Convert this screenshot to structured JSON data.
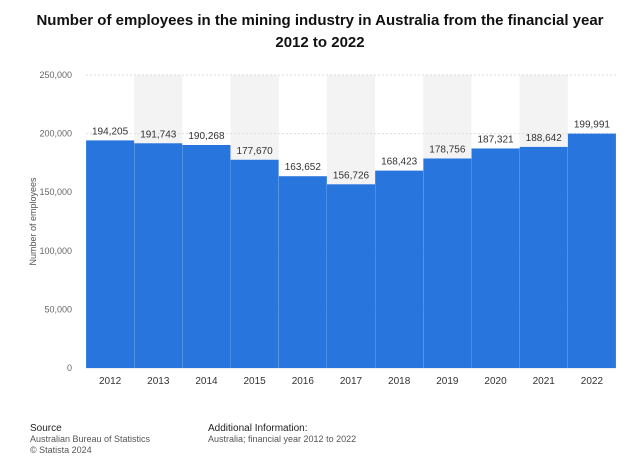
{
  "chart_data": {
    "type": "bar",
    "title": "Number of employees in the mining industry in Australia from the financial year 2012 to 2022",
    "ylabel": "Number of employees",
    "xlabel": "",
    "categories": [
      "2012",
      "2013",
      "2014",
      "2015",
      "2016",
      "2017",
      "2018",
      "2019",
      "2020",
      "2021",
      "2022"
    ],
    "values": [
      194205,
      191743,
      190268,
      177670,
      163652,
      156726,
      168423,
      178756,
      187321,
      188642,
      199991
    ],
    "value_labels": [
      "194,205",
      "191,743",
      "190,268",
      "177,670",
      "163,652",
      "156,726",
      "168,423",
      "178,756",
      "187,321",
      "188,642",
      "199,991"
    ],
    "ylim": [
      0,
      250000
    ],
    "yticks": [
      0,
      50000,
      100000,
      150000,
      200000,
      250000
    ],
    "ytick_labels": [
      "0",
      "50,000",
      "100,000",
      "150,000",
      "200,000",
      "250,000"
    ],
    "grid": true,
    "bar_color": "#2876dd",
    "band_color": "#f3f3f3"
  },
  "footer": {
    "source_heading": "Source",
    "source_lines": [
      "Australian Bureau of Statistics",
      "© Statista 2024"
    ],
    "info_heading": "Additional Information:",
    "info_text": "Australia; financial year 2012 to 2022"
  }
}
